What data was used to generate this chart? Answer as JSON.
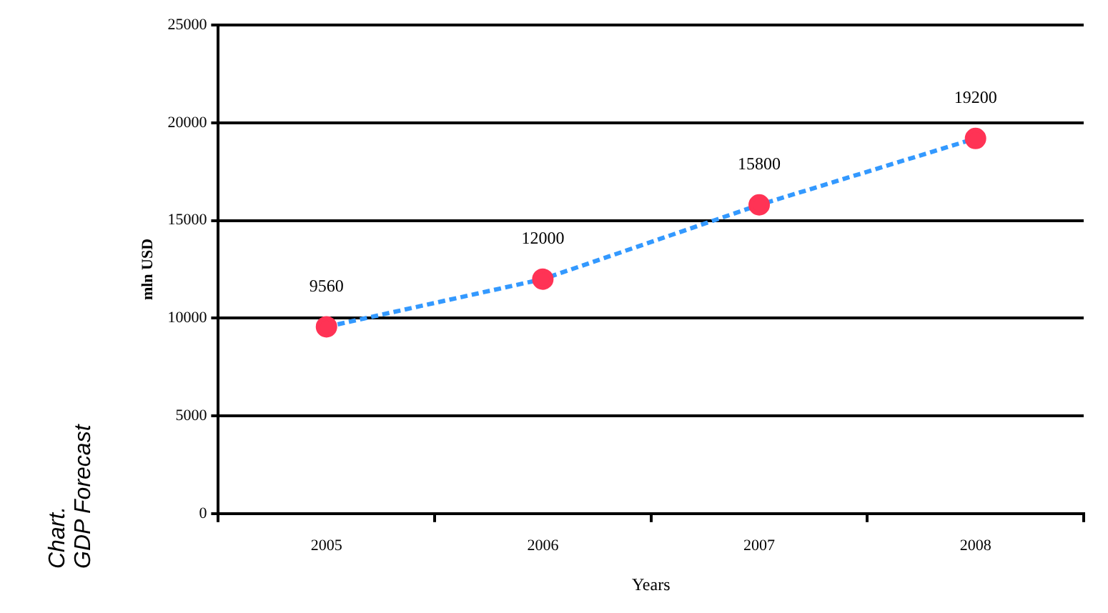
{
  "chart_data": {
    "type": "line",
    "title": "Chart.\nGDP Forecast",
    "xlabel": "Years",
    "ylabel": "mln USD",
    "categories": [
      "2005",
      "2006",
      "2007",
      "2008"
    ],
    "series": [
      {
        "color": "#3399ff",
        "values": [
          9560,
          12000,
          15800,
          19200
        ]
      }
    ],
    "ylim": [
      0,
      25000
    ],
    "yticks": [
      0,
      5000,
      10000,
      15000,
      20000,
      25000
    ],
    "grid": "y",
    "legend": false,
    "marker": "circle",
    "line_style": "dashed",
    "data_labels": true
  }
}
